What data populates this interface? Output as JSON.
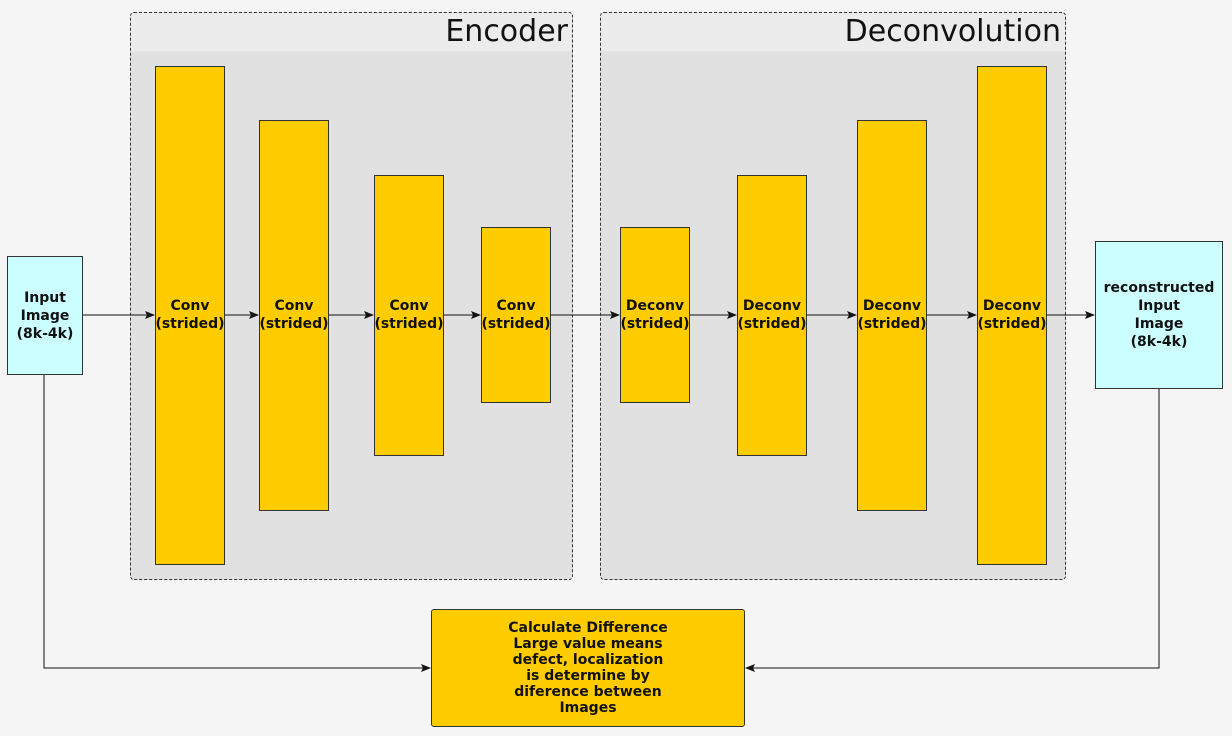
{
  "groups": {
    "encoder": {
      "title": "Encoder"
    },
    "deconvolution": {
      "title": "Deconvolution"
    }
  },
  "input_image": {
    "label": "Input\nImage\n(8k-4k)"
  },
  "encoder_blocks": [
    {
      "label": "Conv\n(strided)"
    },
    {
      "label": "Conv\n(strided)"
    },
    {
      "label": "Conv\n(strided)"
    },
    {
      "label": "Conv\n(strided)"
    }
  ],
  "decoder_blocks": [
    {
      "label": "Deconv\n(strided)"
    },
    {
      "label": "Deconv\n(strided)"
    },
    {
      "label": "Deconv\n(strided)"
    },
    {
      "label": "Deconv\n(strided)"
    }
  ],
  "output_image": {
    "label": "reconstructed\nInput\nImage\n(8k-4k)"
  },
  "difference": {
    "label": "Calculate Difference\nLarge value means\ndefect, localization\nis determine by\ndiference between\nImages"
  },
  "colors": {
    "block": "#ffcc00",
    "image_box": "#ccffff",
    "group_fill": "#e1e1e1",
    "background": "#f5f5f5"
  }
}
